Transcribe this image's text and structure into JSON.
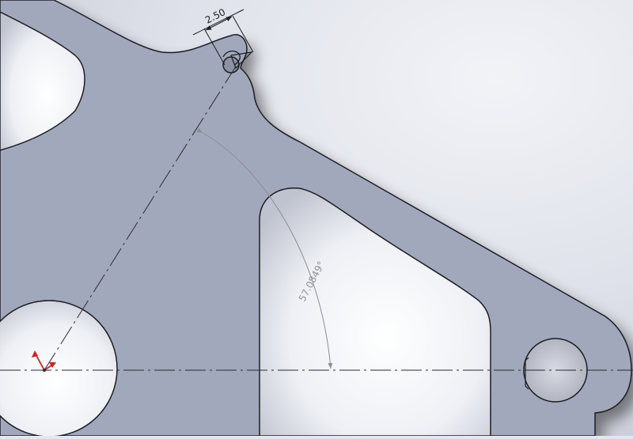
{
  "dimensions": {
    "width_dim": "2.50",
    "angle_dim": "57.0849°"
  },
  "colors": {
    "background": "#e3e6ee",
    "part_face": "#a2a8bc",
    "part_edge": "#1c1d22",
    "hole_fill": "#f2f3f7",
    "dimension_line": "#8a8d95",
    "dimension_text": "#8f9096",
    "centerline": "#2a2b30",
    "origin_arrow": "#d81e1e"
  },
  "icons": {
    "origin": "origin-triad-icon"
  }
}
